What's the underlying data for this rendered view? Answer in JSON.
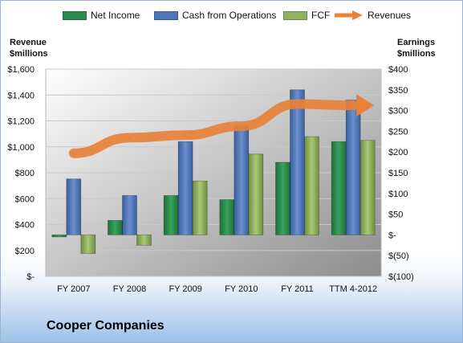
{
  "company_name": "Cooper Companies",
  "legend": [
    {
      "label": "Net Income",
      "color": "#2e8b4f"
    },
    {
      "label": "Cash from Operations",
      "color": "#4f77b8"
    },
    {
      "label": "FCF",
      "color": "#90b45e"
    },
    {
      "label": "Revenues",
      "color": "#e8823a"
    }
  ],
  "axis_titles": {
    "left_line1": "Revenue",
    "left_line2": "$millions",
    "right_line1": "Earnings",
    "right_line2": "$millions"
  },
  "chart_data": {
    "type": "bar",
    "categories": [
      "FY 2007",
      "FY 2008",
      "FY 2009",
      "FY 2010",
      "FY 2011",
      "TTM 4-2012"
    ],
    "left_axis": {
      "ylim": [
        0,
        1600
      ],
      "ticks": [
        0,
        200,
        400,
        600,
        800,
        1000,
        1200,
        1400,
        1600
      ],
      "tick_labels": [
        "$-",
        "$200",
        "$400",
        "$600",
        "$800",
        "$1,000",
        "$1,200",
        "$1,400",
        "$1,600"
      ]
    },
    "right_axis": {
      "ylim": [
        -100,
        400
      ],
      "ticks": [
        -100,
        -50,
        0,
        50,
        100,
        150,
        200,
        250,
        300,
        350,
        400
      ],
      "tick_labels": [
        "$(100)",
        "$(50)",
        "$-",
        "$50",
        "$100",
        "$150",
        "$200",
        "$250",
        "$300",
        "$350",
        "$400"
      ]
    },
    "series": [
      {
        "name": "Net Income",
        "axis": "right",
        "kind": "bar",
        "color": "#2e8b4f",
        "values": [
          -5,
          35,
          95,
          85,
          175,
          225
        ]
      },
      {
        "name": "Cash from Operations",
        "axis": "right",
        "kind": "bar",
        "color": "#4f77b8",
        "values": [
          135,
          95,
          225,
          265,
          350,
          325
        ]
      },
      {
        "name": "FCF",
        "axis": "right",
        "kind": "bar",
        "color": "#90b45e",
        "values": [
          -45,
          -25,
          130,
          195,
          237,
          228
        ]
      },
      {
        "name": "Revenues",
        "axis": "left",
        "kind": "line",
        "color": "#e8823a",
        "values": [
          950,
          1070,
          1090,
          1160,
          1330,
          1320
        ]
      }
    ],
    "grid": true,
    "legend_position": "top"
  }
}
